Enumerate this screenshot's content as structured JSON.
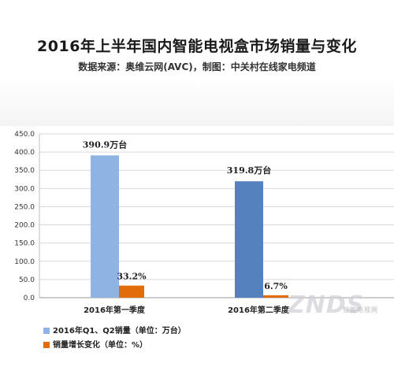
{
  "title": "2016年上半年国内智能电视盒市场销量与变化",
  "subtitle": "数据来源：奥维云网(AVC)，制图：中关村在线家电频道",
  "colors": {
    "sales": "#8fb4e3",
    "sales_q2": "#5581bf",
    "growth": "#e36c0a",
    "grid": "#d9d9d9"
  },
  "chart_data": {
    "type": "bar",
    "categories": [
      "2016年第一季度",
      "2016年第二季度"
    ],
    "series": [
      {
        "name": "2016年Q1、Q2销量（单位：万台）",
        "values": [
          390.9,
          319.8
        ],
        "labels": [
          "390.9万台",
          "319.8万台"
        ]
      },
      {
        "name": "销量增长变化（单位：%）",
        "values": [
          33.2,
          6.7
        ],
        "labels": [
          "33.2%",
          "6.7%"
        ]
      }
    ],
    "ylim": [
      0,
      450
    ],
    "yticks": [
      "0.0",
      "50.0",
      "100.0",
      "150.0",
      "200.0",
      "250.0",
      "300.0",
      "350.0",
      "400.0",
      "450.0"
    ],
    "grid": true,
    "legend_position": "bottom-left"
  },
  "watermark": {
    "main": "ZNDS",
    "sub": "智能电视网"
  }
}
